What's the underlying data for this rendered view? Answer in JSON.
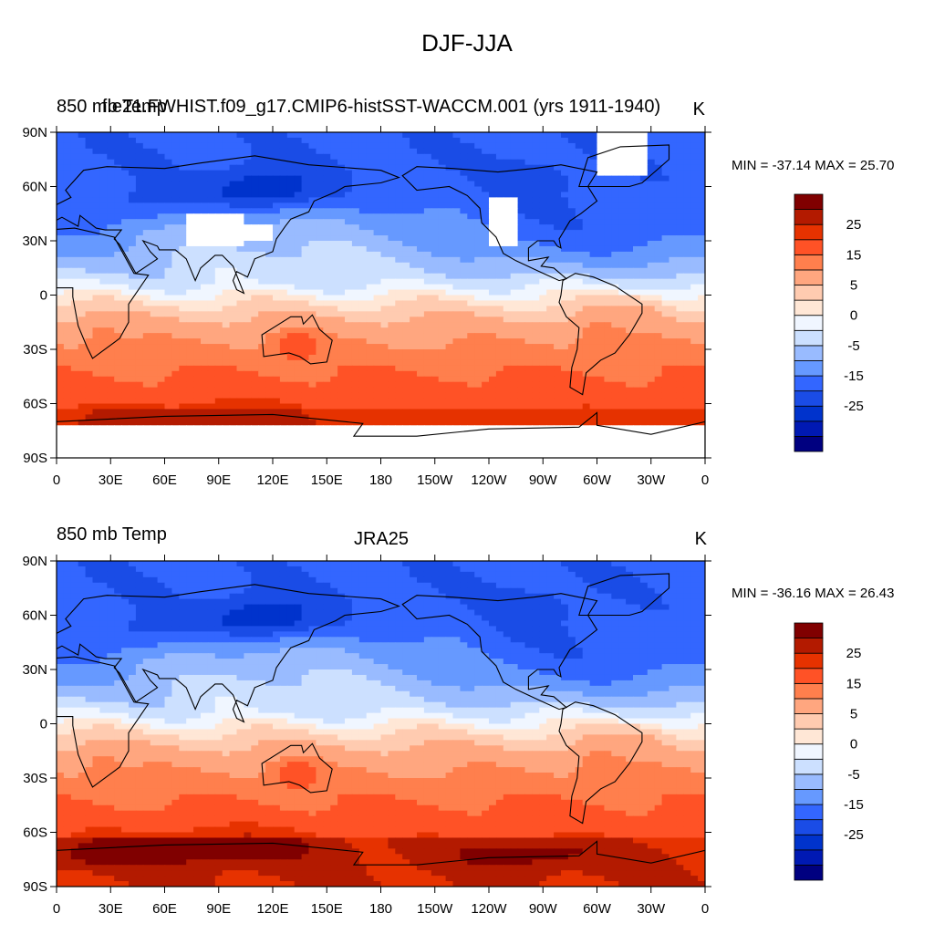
{
  "figure_title": "DJF-JJA",
  "colors": {
    "levels": [
      "#000080",
      "#0019b3",
      "#0033cc",
      "#1a4ce6",
      "#3366ff",
      "#6699ff",
      "#99bbff",
      "#cce0ff",
      "#f0f6ff",
      "#ffe7d6",
      "#ffcbb0",
      "#ffa67f",
      "#ff7f4d",
      "#ff5226",
      "#e63200",
      "#b31a00",
      "#800000"
    ],
    "land_line": "#000000",
    "missing": "#ffffff"
  },
  "chart_data": [
    {
      "type": "heatmap",
      "left_title": "850 mb Temp",
      "center_title": "f.e21.FWHIST.f09_g17.CMIP6-histSST-WACCM.001 (yrs 1911-1940)",
      "units": "K",
      "stats_text": "MIN = -37.14 MAX =  25.70",
      "min": -37.14,
      "max": 25.7,
      "x_ticks": [
        "0",
        "30E",
        "60E",
        "90E",
        "120E",
        "150E",
        "180",
        "150W",
        "120W",
        "90W",
        "60W",
        "30W",
        "0"
      ],
      "y_ticks": [
        "90N",
        "60N",
        "30N",
        "0",
        "30S",
        "60S",
        "90S"
      ],
      "x_range": [
        0,
        360
      ],
      "y_range": [
        -90,
        90
      ],
      "colorbar_levels": [
        -35,
        -30,
        -25,
        -20,
        -15,
        -10,
        -5,
        -2,
        0,
        2,
        5,
        10,
        15,
        20,
        25,
        30
      ],
      "colorbar_labels": [
        "25",
        "15",
        "5",
        "0",
        "-5",
        "-15",
        "-25"
      ],
      "masked_high_terrain": true
    },
    {
      "type": "heatmap",
      "left_title": "850 mb Temp",
      "center_title": "JRA25",
      "units": "K",
      "stats_text": "MIN = -36.16 MAX =  26.43",
      "min": -36.16,
      "max": 26.43,
      "x_ticks": [
        "0",
        "30E",
        "60E",
        "90E",
        "120E",
        "150E",
        "180",
        "150W",
        "120W",
        "90W",
        "60W",
        "30W",
        "0"
      ],
      "y_ticks": [
        "90N",
        "60N",
        "30N",
        "0",
        "30S",
        "60S",
        "90S"
      ],
      "x_range": [
        0,
        360
      ],
      "y_range": [
        -90,
        90
      ],
      "colorbar_levels": [
        -35,
        -30,
        -25,
        -20,
        -15,
        -10,
        -5,
        -2,
        0,
        2,
        5,
        10,
        15,
        20,
        25,
        30
      ],
      "colorbar_labels": [
        "25",
        "15",
        "5",
        "0",
        "-5",
        "-15",
        "-25"
      ],
      "masked_high_terrain": false
    }
  ]
}
